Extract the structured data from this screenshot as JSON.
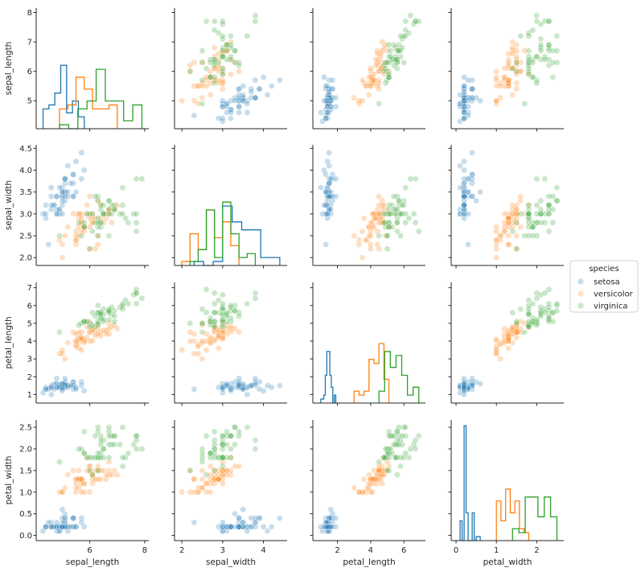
{
  "chart_data": {
    "type": "scatter",
    "layout": "pairplot",
    "diag_kind": "hist step",
    "variables": [
      "sepal_length",
      "sepal_width",
      "petal_length",
      "petal_width"
    ],
    "axes": {
      "sepal_length": {
        "label": "sepal_length",
        "range": [
          4.05,
          8.15
        ],
        "xticks": [
          6,
          8
        ],
        "xtick_labels": [
          "6",
          "8"
        ],
        "yticks": [
          5,
          6,
          7,
          8
        ],
        "ytick_labels": [
          "5",
          "6",
          "7",
          "8"
        ]
      },
      "sepal_width": {
        "label": "sepal_width",
        "range": [
          1.82,
          4.58
        ],
        "xticks": [
          2,
          3,
          4
        ],
        "xtick_labels": [
          "2",
          "3",
          "4"
        ],
        "yticks": [
          2.0,
          2.5,
          3.0,
          3.5,
          4.0,
          4.5
        ],
        "ytick_labels": [
          "2.0",
          "2.5",
          "3.0",
          "3.5",
          "4.0",
          "4.5"
        ]
      },
      "petal_length": {
        "label": "petal_length",
        "range": [
          0.52,
          7.3
        ],
        "xticks": [
          2,
          4,
          6
        ],
        "xtick_labels": [
          "2",
          "4",
          "6"
        ],
        "yticks": [
          1,
          2,
          3,
          4,
          5,
          6,
          7
        ],
        "ytick_labels": [
          "1",
          "2",
          "3",
          "4",
          "5",
          "6",
          "7"
        ]
      },
      "petal_width": {
        "label": "petal_width",
        "range": [
          -0.12,
          2.67
        ],
        "xticks": [
          0,
          1,
          2
        ],
        "xtick_labels": [
          "0",
          "1",
          "2"
        ],
        "yticks": [
          0.0,
          0.5,
          1.0,
          1.5,
          2.0,
          2.5
        ],
        "ytick_labels": [
          "0.0",
          "0.5",
          "1.0",
          "1.5",
          "2.0",
          "2.5"
        ]
      }
    },
    "point_alpha": 0.25,
    "legend": {
      "title": "species",
      "placement": "right",
      "entries": [
        "setosa",
        "versicolor",
        "virginica"
      ]
    },
    "series": [
      {
        "name": "setosa",
        "color": "#1f77b4",
        "rows": [
          [
            5.1,
            3.5,
            1.4,
            0.2
          ],
          [
            4.9,
            3.0,
            1.4,
            0.2
          ],
          [
            4.7,
            3.2,
            1.3,
            0.2
          ],
          [
            4.6,
            3.1,
            1.5,
            0.2
          ],
          [
            5.0,
            3.6,
            1.4,
            0.2
          ],
          [
            5.4,
            3.9,
            1.7,
            0.4
          ],
          [
            4.6,
            3.4,
            1.4,
            0.3
          ],
          [
            5.0,
            3.4,
            1.5,
            0.2
          ],
          [
            4.4,
            2.9,
            1.4,
            0.2
          ],
          [
            4.9,
            3.1,
            1.5,
            0.1
          ],
          [
            5.4,
            3.7,
            1.5,
            0.2
          ],
          [
            4.8,
            3.4,
            1.6,
            0.2
          ],
          [
            4.8,
            3.0,
            1.4,
            0.1
          ],
          [
            4.3,
            3.0,
            1.1,
            0.1
          ],
          [
            5.8,
            4.0,
            1.2,
            0.2
          ],
          [
            5.7,
            4.4,
            1.5,
            0.4
          ],
          [
            5.4,
            3.9,
            1.3,
            0.4
          ],
          [
            5.1,
            3.5,
            1.4,
            0.3
          ],
          [
            5.7,
            3.8,
            1.7,
            0.3
          ],
          [
            5.1,
            3.8,
            1.5,
            0.3
          ],
          [
            5.4,
            3.4,
            1.7,
            0.2
          ],
          [
            5.1,
            3.7,
            1.5,
            0.4
          ],
          [
            4.6,
            3.6,
            1.0,
            0.2
          ],
          [
            5.1,
            3.3,
            1.7,
            0.5
          ],
          [
            4.8,
            3.4,
            1.9,
            0.2
          ],
          [
            5.0,
            3.0,
            1.6,
            0.2
          ],
          [
            5.0,
            3.4,
            1.6,
            0.4
          ],
          [
            5.2,
            3.5,
            1.5,
            0.2
          ],
          [
            5.2,
            3.4,
            1.4,
            0.2
          ],
          [
            4.7,
            3.2,
            1.6,
            0.2
          ],
          [
            4.8,
            3.1,
            1.6,
            0.2
          ],
          [
            5.4,
            3.4,
            1.5,
            0.4
          ],
          [
            5.2,
            4.1,
            1.5,
            0.1
          ],
          [
            5.5,
            4.2,
            1.4,
            0.2
          ],
          [
            4.9,
            3.1,
            1.5,
            0.2
          ],
          [
            5.0,
            3.2,
            1.2,
            0.2
          ],
          [
            5.5,
            3.5,
            1.3,
            0.2
          ],
          [
            4.9,
            3.6,
            1.4,
            0.1
          ],
          [
            4.4,
            3.0,
            1.3,
            0.2
          ],
          [
            5.1,
            3.4,
            1.5,
            0.2
          ],
          [
            5.0,
            3.5,
            1.3,
            0.3
          ],
          [
            4.5,
            2.3,
            1.3,
            0.3
          ],
          [
            4.4,
            3.2,
            1.3,
            0.2
          ],
          [
            5.0,
            3.5,
            1.6,
            0.6
          ],
          [
            5.1,
            3.8,
            1.9,
            0.4
          ],
          [
            4.8,
            3.0,
            1.4,
            0.3
          ],
          [
            5.1,
            3.8,
            1.6,
            0.2
          ],
          [
            4.6,
            3.2,
            1.4,
            0.2
          ],
          [
            5.3,
            3.7,
            1.5,
            0.2
          ],
          [
            5.0,
            3.3,
            1.4,
            0.2
          ]
        ]
      },
      {
        "name": "versicolor",
        "color": "#ff7f0e",
        "rows": [
          [
            7.0,
            3.2,
            4.7,
            1.4
          ],
          [
            6.4,
            3.2,
            4.5,
            1.5
          ],
          [
            6.9,
            3.1,
            4.9,
            1.5
          ],
          [
            5.5,
            2.3,
            4.0,
            1.3
          ],
          [
            6.5,
            2.8,
            4.6,
            1.5
          ],
          [
            5.7,
            2.8,
            4.5,
            1.3
          ],
          [
            6.3,
            3.3,
            4.7,
            1.6
          ],
          [
            4.9,
            2.4,
            3.3,
            1.0
          ],
          [
            6.6,
            2.9,
            4.6,
            1.3
          ],
          [
            5.2,
            2.7,
            3.9,
            1.4
          ],
          [
            5.0,
            2.0,
            3.5,
            1.0
          ],
          [
            5.9,
            3.0,
            4.2,
            1.5
          ],
          [
            6.0,
            2.2,
            4.0,
            1.0
          ],
          [
            6.1,
            2.9,
            4.7,
            1.4
          ],
          [
            5.6,
            2.9,
            3.6,
            1.3
          ],
          [
            6.7,
            3.1,
            4.4,
            1.4
          ],
          [
            5.6,
            3.0,
            4.5,
            1.5
          ],
          [
            5.8,
            2.7,
            4.1,
            1.0
          ],
          [
            6.2,
            2.2,
            4.5,
            1.5
          ],
          [
            5.6,
            2.5,
            3.9,
            1.1
          ],
          [
            5.9,
            3.2,
            4.8,
            1.8
          ],
          [
            6.1,
            2.8,
            4.0,
            1.3
          ],
          [
            6.3,
            2.5,
            4.9,
            1.5
          ],
          [
            6.1,
            2.8,
            4.7,
            1.2
          ],
          [
            6.4,
            2.9,
            4.3,
            1.3
          ],
          [
            6.6,
            3.0,
            4.4,
            1.4
          ],
          [
            6.8,
            2.8,
            4.8,
            1.4
          ],
          [
            6.7,
            3.0,
            5.0,
            1.7
          ],
          [
            6.0,
            2.9,
            4.5,
            1.5
          ],
          [
            5.7,
            2.6,
            3.5,
            1.0
          ],
          [
            5.5,
            2.4,
            3.8,
            1.1
          ],
          [
            5.5,
            2.4,
            3.7,
            1.0
          ],
          [
            5.8,
            2.7,
            3.9,
            1.2
          ],
          [
            6.0,
            2.7,
            5.1,
            1.6
          ],
          [
            5.4,
            3.0,
            4.5,
            1.5
          ],
          [
            6.0,
            3.4,
            4.5,
            1.6
          ],
          [
            6.7,
            3.1,
            4.7,
            1.5
          ],
          [
            6.3,
            2.3,
            4.4,
            1.3
          ],
          [
            5.6,
            3.0,
            4.1,
            1.3
          ],
          [
            5.5,
            2.5,
            4.0,
            1.3
          ],
          [
            5.5,
            2.6,
            4.4,
            1.2
          ],
          [
            6.1,
            3.0,
            4.6,
            1.4
          ],
          [
            5.8,
            2.6,
            4.0,
            1.2
          ],
          [
            5.0,
            2.3,
            3.3,
            1.0
          ],
          [
            5.6,
            2.7,
            4.2,
            1.3
          ],
          [
            5.7,
            3.0,
            4.2,
            1.2
          ],
          [
            5.7,
            2.9,
            4.2,
            1.3
          ],
          [
            6.2,
            2.9,
            4.3,
            1.3
          ],
          [
            5.1,
            2.5,
            3.0,
            1.1
          ],
          [
            5.7,
            2.8,
            4.1,
            1.3
          ]
        ]
      },
      {
        "name": "virginica",
        "color": "#2ca02c",
        "rows": [
          [
            6.3,
            3.3,
            6.0,
            2.5
          ],
          [
            5.8,
            2.7,
            5.1,
            1.9
          ],
          [
            7.1,
            3.0,
            5.9,
            2.1
          ],
          [
            6.3,
            2.9,
            5.6,
            1.8
          ],
          [
            6.5,
            3.0,
            5.8,
            2.2
          ],
          [
            7.6,
            3.0,
            6.6,
            2.1
          ],
          [
            4.9,
            2.5,
            4.5,
            1.7
          ],
          [
            7.3,
            2.9,
            6.3,
            1.8
          ],
          [
            6.7,
            2.5,
            5.8,
            1.8
          ],
          [
            7.2,
            3.6,
            6.1,
            2.5
          ],
          [
            6.5,
            3.2,
            5.1,
            2.0
          ],
          [
            6.4,
            2.7,
            5.3,
            1.9
          ],
          [
            6.8,
            3.0,
            5.5,
            2.1
          ],
          [
            5.7,
            2.5,
            5.0,
            2.0
          ],
          [
            5.8,
            2.8,
            5.1,
            2.4
          ],
          [
            6.4,
            3.2,
            5.3,
            2.3
          ],
          [
            6.5,
            3.0,
            5.5,
            1.8
          ],
          [
            7.7,
            3.8,
            6.7,
            2.2
          ],
          [
            7.7,
            2.6,
            6.9,
            2.3
          ],
          [
            6.0,
            2.2,
            5.0,
            1.5
          ],
          [
            6.9,
            3.2,
            5.7,
            2.3
          ],
          [
            5.6,
            2.8,
            4.9,
            2.0
          ],
          [
            7.7,
            2.8,
            6.7,
            2.0
          ],
          [
            6.3,
            2.7,
            4.9,
            1.8
          ],
          [
            6.7,
            3.3,
            5.7,
            2.1
          ],
          [
            7.2,
            3.2,
            6.0,
            1.8
          ],
          [
            6.2,
            2.8,
            4.8,
            1.8
          ],
          [
            6.1,
            3.0,
            4.9,
            1.8
          ],
          [
            6.4,
            2.8,
            5.6,
            2.1
          ],
          [
            7.2,
            3.0,
            5.8,
            1.6
          ],
          [
            7.4,
            2.8,
            6.1,
            1.9
          ],
          [
            7.9,
            3.8,
            6.4,
            2.0
          ],
          [
            6.4,
            2.8,
            5.6,
            2.2
          ],
          [
            6.3,
            2.8,
            5.1,
            1.5
          ],
          [
            6.1,
            2.6,
            5.6,
            1.4
          ],
          [
            7.7,
            3.0,
            6.1,
            2.3
          ],
          [
            6.3,
            3.4,
            5.6,
            2.4
          ],
          [
            6.4,
            3.1,
            5.5,
            1.8
          ],
          [
            6.0,
            3.0,
            4.8,
            1.8
          ],
          [
            6.9,
            3.1,
            5.4,
            2.1
          ],
          [
            6.7,
            3.1,
            5.6,
            2.4
          ],
          [
            6.9,
            3.1,
            5.1,
            2.3
          ],
          [
            5.8,
            2.7,
            5.1,
            1.9
          ],
          [
            6.8,
            3.2,
            5.9,
            2.3
          ],
          [
            6.7,
            3.3,
            5.7,
            2.5
          ],
          [
            6.7,
            3.0,
            5.2,
            2.3
          ],
          [
            6.3,
            2.5,
            5.0,
            1.9
          ],
          [
            6.5,
            3.0,
            5.2,
            2.0
          ],
          [
            6.2,
            3.4,
            5.4,
            2.3
          ],
          [
            5.9,
            3.0,
            5.1,
            1.8
          ]
        ]
      }
    ]
  }
}
